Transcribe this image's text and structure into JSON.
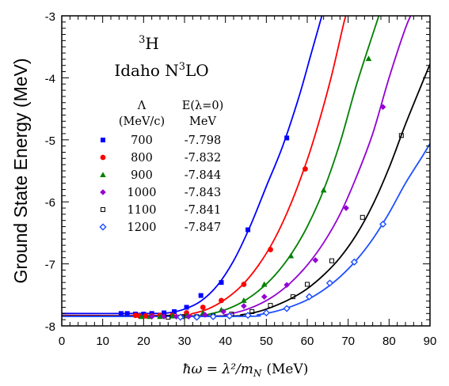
{
  "chart_data": {
    "type": "scatter",
    "ylabel": "Ground State Energy (MeV)",
    "xlabel": "ħω = λ²/m",
    "xlabel_subscript": "N",
    "xlabel_unit": "(MeV)",
    "title_line1_sup": "3",
    "title_line1": "H",
    "title_line2": "Idaho N",
    "title_line2_sup": "3",
    "title_line2_tail": "LO",
    "legend_header": {
      "lambda": "Λ",
      "lambda_unit": "(MeV/c)",
      "energy": "E(λ=0)",
      "energy_unit": "MeV"
    },
    "xlim": [
      0,
      90
    ],
    "ylim": [
      -8,
      -3
    ],
    "x_ticks": [
      "0",
      "10",
      "20",
      "30",
      "40",
      "50",
      "60",
      "70",
      "80",
      "90"
    ],
    "y_ticks": [
      "-8",
      "-7",
      "-6",
      "-5",
      "-4",
      "-3"
    ],
    "series": [
      {
        "name": "700",
        "e0": "-7.798",
        "color": "#0000ff",
        "marker": "square-filled",
        "points": [
          [
            14.5,
            -7.8
          ],
          [
            16,
            -7.8
          ],
          [
            18,
            -7.81
          ],
          [
            20,
            -7.81
          ],
          [
            22,
            -7.8
          ],
          [
            25,
            -7.79
          ],
          [
            27.5,
            -7.77
          ],
          [
            30.5,
            -7.7
          ],
          [
            34,
            -7.51
          ],
          [
            39,
            -7.3
          ],
          [
            45.5,
            -6.45
          ],
          [
            55,
            -4.97
          ]
        ],
        "curve": [
          [
            0,
            -7.8
          ],
          [
            22,
            -7.8
          ],
          [
            26,
            -7.79
          ],
          [
            30,
            -7.73
          ],
          [
            34,
            -7.6
          ],
          [
            38,
            -7.35
          ],
          [
            42,
            -6.95
          ],
          [
            46,
            -6.4
          ],
          [
            50,
            -5.75
          ],
          [
            54,
            -5.1
          ],
          [
            58,
            -4.3
          ],
          [
            61,
            -3.6
          ],
          [
            64,
            -2.9
          ]
        ]
      },
      {
        "name": "800",
        "e0": "-7.832",
        "color": "#ff0000",
        "marker": "circle-filled",
        "points": [
          [
            18,
            -7.83
          ],
          [
            19,
            -7.84
          ],
          [
            20.5,
            -7.84
          ],
          [
            22,
            -7.84
          ],
          [
            24,
            -7.83
          ],
          [
            27,
            -7.83
          ],
          [
            30.5,
            -7.79
          ],
          [
            34.5,
            -7.7
          ],
          [
            39,
            -7.59
          ],
          [
            44.5,
            -7.33
          ],
          [
            51,
            -6.77
          ],
          [
            59.5,
            -5.47
          ]
        ],
        "curve": [
          [
            0,
            -7.832
          ],
          [
            28,
            -7.832
          ],
          [
            32,
            -7.8
          ],
          [
            36,
            -7.72
          ],
          [
            40,
            -7.57
          ],
          [
            44,
            -7.35
          ],
          [
            48,
            -7.03
          ],
          [
            52,
            -6.6
          ],
          [
            56,
            -6.03
          ],
          [
            60,
            -5.32
          ],
          [
            63,
            -4.68
          ],
          [
            66,
            -3.95
          ],
          [
            69,
            -3.1
          ],
          [
            70,
            -2.9
          ]
        ]
      },
      {
        "name": "900",
        "e0": "-7.844",
        "color": "#008000",
        "marker": "triangle-filled",
        "points": [
          [
            19.5,
            -7.85
          ],
          [
            21.5,
            -7.85
          ],
          [
            24,
            -7.85
          ],
          [
            27,
            -7.84
          ],
          [
            30.5,
            -7.84
          ],
          [
            34.5,
            -7.79
          ],
          [
            39,
            -7.74
          ],
          [
            44.5,
            -7.59
          ],
          [
            49.5,
            -7.33
          ],
          [
            56,
            -6.87
          ],
          [
            64,
            -5.81
          ],
          [
            75,
            -3.69
          ]
        ],
        "curve": [
          [
            0,
            -7.844
          ],
          [
            32,
            -7.844
          ],
          [
            36,
            -7.81
          ],
          [
            40,
            -7.74
          ],
          [
            44,
            -7.62
          ],
          [
            48,
            -7.44
          ],
          [
            52,
            -7.19
          ],
          [
            56,
            -6.85
          ],
          [
            60,
            -6.4
          ],
          [
            64,
            -5.81
          ],
          [
            68,
            -5.05
          ],
          [
            72,
            -4.12
          ],
          [
            76,
            -3.3
          ],
          [
            78,
            -2.9
          ]
        ]
      },
      {
        "name": "1000",
        "e0": "-7.843",
        "color": "#9400d3",
        "marker": "diamond-filled",
        "points": [
          [
            22,
            -7.85
          ],
          [
            25,
            -7.85
          ],
          [
            28,
            -7.85
          ],
          [
            31,
            -7.85
          ],
          [
            35,
            -7.82
          ],
          [
            39.5,
            -7.77
          ],
          [
            44.5,
            -7.68
          ],
          [
            49.5,
            -7.53
          ],
          [
            55,
            -7.34
          ],
          [
            62,
            -6.94
          ],
          [
            69.5,
            -6.1
          ],
          [
            78.5,
            -4.47
          ]
        ],
        "curve": [
          [
            0,
            -7.843
          ],
          [
            36,
            -7.843
          ],
          [
            40,
            -7.82
          ],
          [
            44,
            -7.76
          ],
          [
            48,
            -7.66
          ],
          [
            52,
            -7.51
          ],
          [
            56,
            -7.3
          ],
          [
            60,
            -7.02
          ],
          [
            64,
            -6.66
          ],
          [
            68,
            -6.2
          ],
          [
            72,
            -5.6
          ],
          [
            76,
            -4.9
          ],
          [
            80,
            -4.0
          ],
          [
            84,
            -3.2
          ],
          [
            86,
            -2.9
          ]
        ]
      },
      {
        "name": "1100",
        "e0": "-7.841",
        "color": "#000000",
        "marker": "square-open",
        "points": [
          [
            26,
            -7.86
          ],
          [
            29.5,
            -7.85
          ],
          [
            33,
            -7.85
          ],
          [
            37,
            -7.84
          ],
          [
            41.5,
            -7.81
          ],
          [
            46.5,
            -7.77
          ],
          [
            51,
            -7.67
          ],
          [
            56.5,
            -7.53
          ],
          [
            60,
            -7.33
          ],
          [
            66,
            -6.95
          ],
          [
            73.5,
            -6.25
          ],
          [
            83,
            -4.93
          ]
        ],
        "curve": [
          [
            0,
            -7.841
          ],
          [
            40,
            -7.841
          ],
          [
            44,
            -7.82
          ],
          [
            48,
            -7.77
          ],
          [
            52,
            -7.68
          ],
          [
            56,
            -7.56
          ],
          [
            60,
            -7.4
          ],
          [
            64,
            -7.18
          ],
          [
            68,
            -6.9
          ],
          [
            72,
            -6.53
          ],
          [
            76,
            -6.05
          ],
          [
            80,
            -5.45
          ],
          [
            84,
            -4.75
          ],
          [
            88,
            -4.1
          ],
          [
            90,
            -3.78
          ]
        ]
      },
      {
        "name": "1200",
        "e0": "-7.847",
        "color": "#1e50ff",
        "marker": "diamond-open",
        "points": [
          [
            29,
            -7.86
          ],
          [
            33,
            -7.86
          ],
          [
            37,
            -7.85
          ],
          [
            41,
            -7.84
          ],
          [
            45.5,
            -7.83
          ],
          [
            50,
            -7.79
          ],
          [
            55,
            -7.72
          ],
          [
            60.5,
            -7.53
          ],
          [
            65.5,
            -7.31
          ],
          [
            71.5,
            -6.97
          ],
          [
            78.5,
            -6.36
          ]
        ],
        "curve": [
          [
            0,
            -7.847
          ],
          [
            44,
            -7.847
          ],
          [
            48,
            -7.82
          ],
          [
            52,
            -7.77
          ],
          [
            56,
            -7.69
          ],
          [
            60,
            -7.58
          ],
          [
            64,
            -7.42
          ],
          [
            68,
            -7.21
          ],
          [
            72,
            -6.94
          ],
          [
            76,
            -6.6
          ],
          [
            80,
            -6.18
          ],
          [
            84,
            -5.7
          ],
          [
            88,
            -5.28
          ],
          [
            90,
            -5.06
          ]
        ]
      }
    ]
  }
}
